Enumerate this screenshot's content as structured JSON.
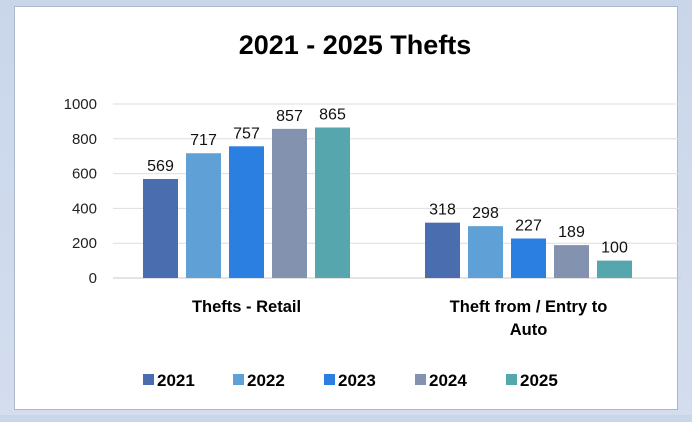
{
  "chart_data": {
    "type": "bar",
    "title": "2021 - 2025 Thefts",
    "categories": [
      [
        "Thefts - Retail"
      ],
      [
        "Theft from / Entry to",
        "Auto"
      ]
    ],
    "series": [
      {
        "name": "2021",
        "color": "#4a6db0",
        "values": [
          569,
          318
        ]
      },
      {
        "name": "2022",
        "color": "#5fa0d6",
        "values": [
          717,
          298
        ]
      },
      {
        "name": "2023",
        "color": "#2a7fe0",
        "values": [
          757,
          227
        ]
      },
      {
        "name": "2024",
        "color": "#8392ae",
        "values": [
          857,
          189
        ]
      },
      {
        "name": "2025",
        "color": "#55a7ad",
        "values": [
          865,
          100
        ]
      }
    ],
    "yticks": [
      0,
      200,
      400,
      600,
      800,
      1000
    ],
    "ylim": [
      0,
      1000
    ],
    "grid": true,
    "legend": "bottom",
    "data_labels": true
  }
}
